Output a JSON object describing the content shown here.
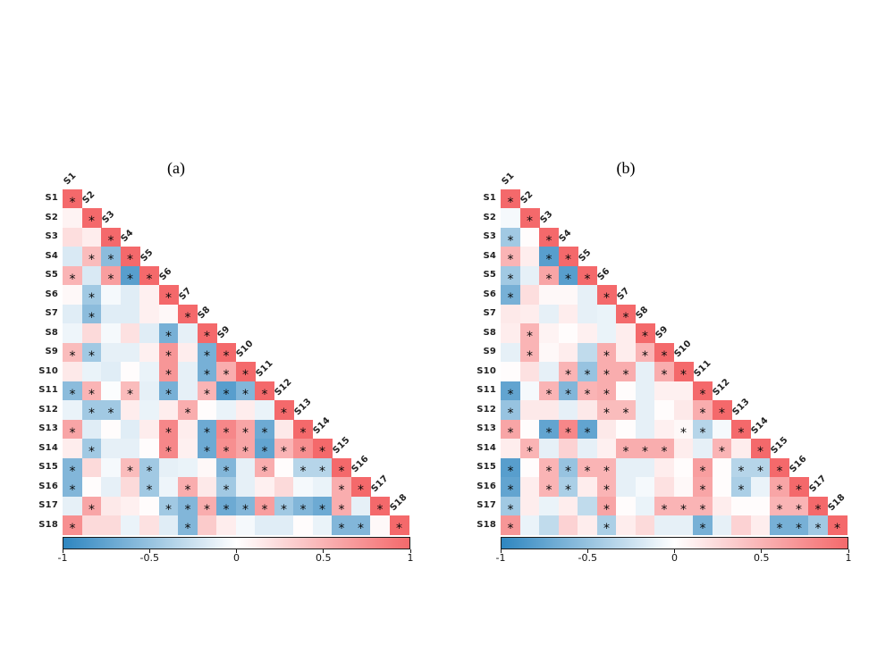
{
  "colors": {
    "positive_end": "#f4696b",
    "negative_end": "#2e86c0",
    "midpoint": "#ffffff",
    "significance_marker": "#0a0a0a",
    "label_color": "#222222"
  },
  "colorbar": {
    "min": -1,
    "max": 1,
    "tick_labels": [
      "-1",
      "-0.5",
      "0",
      "0.5",
      "1"
    ]
  },
  "chart_data": [
    {
      "type": "heatmap",
      "subtype": "lower-triangular-correlation-matrix",
      "title": "(a)",
      "labels": [
        "S1",
        "S2",
        "S3",
        "S4",
        "S5",
        "S6",
        "S7",
        "S8",
        "S9",
        "S10",
        "S11",
        "S12",
        "S13",
        "S14",
        "S15",
        "S16",
        "S17",
        "S18"
      ],
      "value_range": [
        -1,
        1
      ],
      "significance_note": "asterisk marks significant cells",
      "values": [
        [
          1
        ],
        [
          0.08,
          1
        ],
        [
          0.22,
          0.12,
          1
        ],
        [
          -0.18,
          0.45,
          -0.55,
          1
        ],
        [
          0.5,
          -0.18,
          0.65,
          -0.8,
          1
        ],
        [
          0.05,
          -0.45,
          -0.05,
          -0.15,
          0.1,
          1
        ],
        [
          -0.15,
          -0.55,
          -0.15,
          -0.15,
          0.1,
          0.05,
          1
        ],
        [
          -0.08,
          0.25,
          -0.05,
          0.2,
          -0.15,
          -0.65,
          -0.12,
          1
        ],
        [
          0.45,
          -0.45,
          -0.12,
          -0.12,
          0.1,
          0.7,
          0.12,
          -0.65,
          1
        ],
        [
          0.15,
          -0.1,
          -0.15,
          0.02,
          -0.1,
          0.7,
          -0.12,
          -0.65,
          0.55,
          1
        ],
        [
          -0.55,
          0.5,
          -0.02,
          0.45,
          -0.12,
          -0.65,
          -0.12,
          0.5,
          -0.8,
          -0.6,
          1
        ],
        [
          -0.1,
          -0.45,
          -0.45,
          0.12,
          -0.1,
          0.12,
          0.55,
          0.02,
          -0.1,
          0.12,
          -0.1,
          1
        ],
        [
          0.6,
          -0.15,
          0.02,
          -0.15,
          0.12,
          0.8,
          0.12,
          -0.7,
          0.8,
          0.6,
          -0.7,
          0.15,
          1
        ],
        [
          0.12,
          -0.45,
          -0.12,
          -0.12,
          0.02,
          0.8,
          0.1,
          -0.7,
          0.75,
          0.6,
          -0.75,
          0.5,
          0.75,
          1
        ],
        [
          -0.6,
          0.25,
          -0.05,
          0.45,
          -0.45,
          -0.12,
          -0.1,
          0.05,
          -0.6,
          -0.12,
          0.55,
          0.02,
          -0.35,
          -0.35,
          1
        ],
        [
          -0.6,
          0.02,
          -0.12,
          0.25,
          -0.45,
          -0.08,
          0.55,
          0.15,
          -0.45,
          -0.12,
          0.1,
          0.25,
          -0.05,
          -0.1,
          0.55,
          1
        ],
        [
          -0.12,
          0.6,
          0.15,
          0.1,
          0.02,
          -0.45,
          -0.6,
          0.55,
          -0.7,
          -0.6,
          0.65,
          -0.45,
          -0.6,
          -0.7,
          0.55,
          -0.12,
          1
        ],
        [
          0.75,
          0.25,
          0.25,
          -0.1,
          0.2,
          -0.15,
          -0.6,
          0.35,
          0.12,
          -0.05,
          -0.15,
          -0.15,
          0.02,
          -0.1,
          -0.6,
          -0.6,
          0.05,
          1
        ]
      ],
      "significant": [
        [
          1
        ],
        [
          0,
          1
        ],
        [
          0,
          0,
          1
        ],
        [
          0,
          1,
          1,
          1
        ],
        [
          1,
          0,
          1,
          1,
          1
        ],
        [
          0,
          1,
          0,
          0,
          0,
          1
        ],
        [
          0,
          1,
          0,
          0,
          0,
          0,
          1
        ],
        [
          0,
          0,
          0,
          0,
          0,
          1,
          0,
          1
        ],
        [
          1,
          1,
          0,
          0,
          0,
          1,
          0,
          1,
          1
        ],
        [
          0,
          0,
          0,
          0,
          0,
          1,
          0,
          1,
          1,
          1
        ],
        [
          1,
          1,
          0,
          1,
          0,
          1,
          0,
          1,
          1,
          1,
          1
        ],
        [
          0,
          1,
          1,
          0,
          0,
          0,
          1,
          0,
          0,
          0,
          0,
          1
        ],
        [
          1,
          0,
          0,
          0,
          0,
          1,
          0,
          1,
          1,
          1,
          1,
          0,
          1
        ],
        [
          0,
          1,
          0,
          0,
          0,
          1,
          0,
          1,
          1,
          1,
          1,
          1,
          1,
          1
        ],
        [
          1,
          0,
          0,
          1,
          1,
          0,
          0,
          0,
          1,
          0,
          1,
          0,
          1,
          1,
          1
        ],
        [
          1,
          0,
          0,
          0,
          1,
          0,
          1,
          0,
          1,
          0,
          0,
          0,
          0,
          0,
          1,
          1
        ],
        [
          0,
          1,
          0,
          0,
          0,
          1,
          1,
          1,
          1,
          1,
          1,
          1,
          1,
          1,
          1,
          0,
          1
        ],
        [
          1,
          0,
          0,
          0,
          0,
          0,
          1,
          0,
          0,
          0,
          0,
          0,
          0,
          0,
          1,
          1,
          0,
          1
        ]
      ]
    },
    {
      "type": "heatmap",
      "subtype": "lower-triangular-correlation-matrix",
      "title": "(b)",
      "labels": [
        "S1",
        "S2",
        "S3",
        "S4",
        "S5",
        "S6",
        "S7",
        "S8",
        "S9",
        "S10",
        "S11",
        "S12",
        "S13",
        "S14",
        "S15",
        "S16",
        "S17",
        "S18"
      ],
      "value_range": [
        -1,
        1
      ],
      "significance_note": "asterisk marks significant cells",
      "values": [
        [
          1
        ],
        [
          -0.05,
          1
        ],
        [
          -0.45,
          0.02,
          1
        ],
        [
          0.5,
          0.12,
          -0.8,
          1
        ],
        [
          -0.45,
          -0.12,
          0.6,
          -0.8,
          1
        ],
        [
          -0.65,
          0.22,
          0.05,
          0.05,
          -0.12,
          1
        ],
        [
          0.15,
          0.12,
          -0.12,
          0.12,
          -0.12,
          -0.1,
          1
        ],
        [
          0.12,
          0.5,
          0.08,
          0.02,
          0.1,
          -0.1,
          0.12,
          1
        ],
        [
          -0.12,
          0.5,
          0.05,
          0.12,
          -0.3,
          0.55,
          0.12,
          0.5,
          1
        ],
        [
          0.02,
          0.2,
          -0.12,
          0.5,
          -0.5,
          0.55,
          0.55,
          -0.12,
          0.55,
          1
        ],
        [
          -0.75,
          -0.05,
          0.5,
          -0.6,
          0.5,
          0.55,
          0.02,
          -0.12,
          0.1,
          0.1,
          1
        ],
        [
          -0.5,
          0.15,
          0.15,
          -0.12,
          0.15,
          0.45,
          0.45,
          -0.12,
          0.02,
          0.15,
          0.55,
          1
        ],
        [
          0.6,
          0.02,
          -0.75,
          0.8,
          -0.75,
          0.15,
          0.02,
          -0.12,
          0.1,
          0.05,
          -0.35,
          -0.05,
          1
        ],
        [
          0.12,
          0.5,
          -0.12,
          0.3,
          -0.12,
          0.1,
          0.55,
          0.55,
          0.55,
          0.12,
          -0.12,
          0.5,
          0.12,
          1
        ],
        [
          -0.8,
          0.02,
          0.5,
          -0.5,
          0.5,
          0.5,
          -0.12,
          -0.12,
          0.12,
          0.02,
          0.65,
          0.02,
          -0.35,
          -0.35,
          1
        ],
        [
          -0.75,
          0.12,
          0.5,
          -0.4,
          0.12,
          0.5,
          -0.12,
          -0.05,
          0.2,
          0.05,
          0.6,
          0.02,
          -0.4,
          -0.1,
          0.6,
          1
        ],
        [
          -0.45,
          0.12,
          -0.1,
          0.12,
          -0.3,
          0.6,
          0.02,
          -0.1,
          0.5,
          0.5,
          0.5,
          0.12,
          0.02,
          0.02,
          0.5,
          0.5,
          1
        ],
        [
          0.7,
          -0.1,
          -0.3,
          0.3,
          0.12,
          -0.4,
          0.12,
          0.25,
          -0.12,
          -0.12,
          -0.65,
          -0.12,
          0.3,
          0.12,
          -0.65,
          -0.65,
          -0.45,
          1
        ]
      ],
      "significant": [
        [
          1
        ],
        [
          0,
          1
        ],
        [
          1,
          0,
          1
        ],
        [
          1,
          0,
          1,
          1
        ],
        [
          1,
          0,
          1,
          1,
          1
        ],
        [
          1,
          0,
          0,
          0,
          0,
          1
        ],
        [
          0,
          0,
          0,
          0,
          0,
          0,
          1
        ],
        [
          0,
          1,
          0,
          0,
          0,
          0,
          0,
          1
        ],
        [
          0,
          1,
          0,
          0,
          0,
          1,
          0,
          1,
          1
        ],
        [
          0,
          0,
          0,
          1,
          1,
          1,
          1,
          0,
          1,
          1
        ],
        [
          1,
          0,
          1,
          1,
          1,
          1,
          0,
          0,
          0,
          0,
          1
        ],
        [
          1,
          0,
          0,
          0,
          0,
          1,
          1,
          0,
          0,
          0,
          1,
          1
        ],
        [
          1,
          0,
          1,
          1,
          1,
          0,
          0,
          0,
          0,
          1,
          1,
          0,
          1
        ],
        [
          0,
          1,
          0,
          0,
          0,
          0,
          1,
          1,
          1,
          0,
          0,
          1,
          0,
          1
        ],
        [
          1,
          0,
          1,
          1,
          1,
          1,
          0,
          0,
          0,
          0,
          1,
          0,
          1,
          1,
          1
        ],
        [
          1,
          0,
          1,
          1,
          0,
          1,
          0,
          0,
          0,
          0,
          1,
          0,
          1,
          0,
          1,
          1
        ],
        [
          1,
          0,
          0,
          0,
          0,
          1,
          0,
          0,
          1,
          1,
          1,
          0,
          0,
          0,
          1,
          1,
          1
        ],
        [
          1,
          0,
          0,
          0,
          0,
          1,
          0,
          0,
          0,
          0,
          1,
          0,
          0,
          0,
          1,
          1,
          1,
          1
        ]
      ]
    }
  ]
}
